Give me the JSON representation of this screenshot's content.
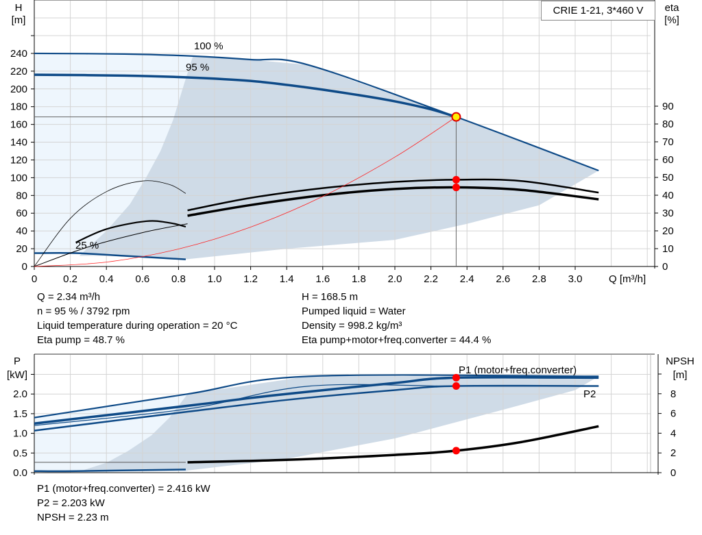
{
  "product_title": "CRIE 1-21, 3*460 V",
  "colors": {
    "curve_blue": "#0e4a87",
    "operating_area": "#cfdbe7",
    "extended_area": "#eef6fd",
    "duty_point": "#ff0000",
    "system_curve": "#ff2020",
    "grid": "#d4d4d4"
  },
  "info_top": {
    "left": [
      "Q = 2.34 m³/h",
      "n = 95 % / 3792 rpm",
      "Liquid temperature during operation = 20 °C",
      "Eta pump = 48.7 %"
    ],
    "right": [
      "H = 168.5 m",
      "Pumped liquid = Water",
      "Density = 998.2 kg/m³",
      "Eta pump+motor+freq.converter = 44.4 %"
    ]
  },
  "info_bottom": [
    "P1 (motor+freq.converter) = 2.416 kW",
    "P2 = 2.203 kW",
    "NPSH = 2.23 m"
  ],
  "chart_data": [
    {
      "type": "line",
      "xlabel": "Q [m³/h]",
      "ylabel": [
        "H",
        "[m]"
      ],
      "y2label": [
        "eta",
        "[%]"
      ],
      "xlim": [
        0,
        3.4
      ],
      "ylim": [
        0,
        280
      ],
      "y2lim": [
        0,
        107.7
      ],
      "xticks": [
        "0",
        "0.2",
        "0.4",
        "0.6",
        "0.8",
        "1.0",
        "1.2",
        "1.4",
        "1.6",
        "1.8",
        "2.0",
        "2.2",
        "2.4",
        "2.6",
        "2.8",
        "3.0"
      ],
      "yticks": [
        "0",
        "20",
        "40",
        "60",
        "80",
        "100",
        "120",
        "140",
        "160",
        "180",
        "200",
        "220",
        "240"
      ],
      "y2ticks": [
        "0",
        "10",
        "20",
        "30",
        "40",
        "50",
        "60",
        "70",
        "80",
        "90"
      ],
      "grid": true,
      "annotations": [
        "100 %",
        "95 %",
        "25 %"
      ],
      "series": [
        {
          "axis": "H",
          "label_ref": "100 %",
          "x": [
            0,
            0.5,
            0.88,
            1.2,
            1.52,
            2.34,
            3.13
          ],
          "y": [
            240,
            239.3,
            237,
            233,
            227,
            168.5,
            108
          ]
        },
        {
          "axis": "H",
          "label_ref": "95 %",
          "x": [
            0,
            0.5,
            0.85,
            1.2,
            1.5,
            1.8,
            2.0,
            2.2,
            2.34
          ],
          "y": [
            216,
            215,
            213,
            209,
            202,
            193,
            186,
            177,
            168.5
          ]
        },
        {
          "axis": "H",
          "label_ref": "25 %",
          "x": [
            0,
            0.23,
            0.5,
            0.84
          ],
          "y": [
            15,
            15,
            12,
            8
          ]
        },
        {
          "axis": "eta",
          "x": [
            0.85,
            1.2,
            1.6,
            2.0,
            2.34,
            2.7,
            3.13
          ],
          "y": [
            31.5,
            38.5,
            44,
            47.5,
            48.7,
            48,
            41.5
          ]
        },
        {
          "axis": "eta",
          "x": [
            0.85,
            1.2,
            1.6,
            2.0,
            2.34,
            2.7,
            3.13
          ],
          "y": [
            28.5,
            34.5,
            40,
            43.5,
            44.4,
            43,
            37.7
          ]
        },
        {
          "axis": "eta",
          "x": [
            0,
            0.2,
            0.4,
            0.6,
            0.75,
            0.84
          ],
          "y": [
            0,
            27,
            42,
            48,
            46,
            41
          ]
        },
        {
          "axis": "eta",
          "x": [
            0.23,
            0.4,
            0.62,
            0.75,
            0.84
          ],
          "y": [
            13.5,
            21,
            25.4,
            24.5,
            22.3
          ]
        },
        {
          "axis": "eta",
          "x": [
            0,
            0.3,
            0.6,
            0.85
          ],
          "y": [
            0,
            11,
            19,
            24
          ]
        }
      ],
      "system_curve": {
        "x": [
          0,
          0.4,
          0.8,
          1.2,
          1.6,
          2.0,
          2.34
        ],
        "y": [
          0,
          4.9,
          19.7,
          44.4,
          78.9,
          123.2,
          168.5
        ]
      },
      "duty_point": {
        "Q": 2.34,
        "H": 168.5,
        "eta_pump": 48.7,
        "eta_total": 44.4
      }
    },
    {
      "type": "line",
      "ylabel": [
        "P",
        "[kW]"
      ],
      "y2label": [
        "NPSH",
        "[m]"
      ],
      "xlim": [
        0,
        3.4
      ],
      "ylim": [
        0,
        2.6
      ],
      "y2lim": [
        0,
        10.4
      ],
      "yticks": [
        "0.0",
        "0.5",
        "1.0",
        "1.5",
        "2.0"
      ],
      "y2ticks": [
        "0",
        "2",
        "4",
        "6",
        "8"
      ],
      "grid": true,
      "series": [
        {
          "name": "P1 (motor+freq.converter)",
          "axis": "P",
          "x": [
            0,
            0.85,
            1.52,
            3.13
          ],
          "y": [
            1.4,
            2.0,
            2.45,
            2.45
          ]
        },
        {
          "axis": "P",
          "x": [
            0,
            0.85,
            1.2,
            1.5,
            2.0,
            2.34,
            3.13
          ],
          "y": [
            1.25,
            1.7,
            1.9,
            2.05,
            2.28,
            2.416,
            2.416
          ]
        },
        {
          "axis": "P",
          "x": [
            0,
            0.85,
            1.52,
            2.34,
            3.13
          ],
          "y": [
            1.2,
            1.62,
            2.2,
            2.2,
            2.2
          ]
        },
        {
          "name": "P2",
          "axis": "P",
          "x": [
            0,
            0.85,
            1.4,
            2.0,
            2.34,
            3.13
          ],
          "y": [
            1.07,
            1.55,
            1.85,
            2.1,
            2.203,
            2.203
          ]
        },
        {
          "axis": "P",
          "x": [
            0,
            0.23,
            0.84
          ],
          "y": [
            0.04,
            0.04,
            0.08
          ]
        },
        {
          "axis": "NPSH",
          "x": [
            0.85,
            1.4,
            2.0,
            2.34,
            2.7,
            3.13
          ],
          "y": [
            1.05,
            1.3,
            1.8,
            2.23,
            3.1,
            4.7
          ]
        },
        {
          "axis": "NPSH",
          "x": [
            0,
            0.84
          ],
          "y": [
            1.05,
            1.05
          ]
        }
      ],
      "duty_point": {
        "P1": 2.416,
        "P2": 2.203,
        "NPSH": 2.23
      }
    }
  ]
}
